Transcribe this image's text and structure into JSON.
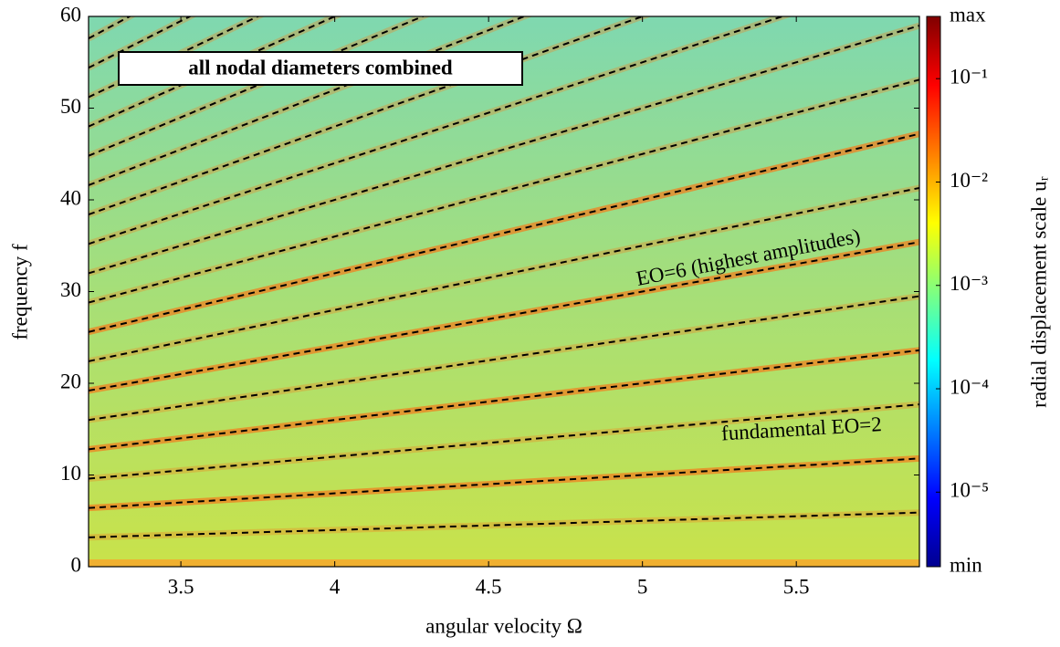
{
  "chart_data": {
    "type": "line",
    "x": [
      3.2,
      5.9
    ],
    "xlabel": "angular velocity Ω",
    "ylabel": "frequency f",
    "xlim": [
      3.2,
      5.9
    ],
    "xticks": [
      3.5,
      4,
      4.5,
      5,
      5.5
    ],
    "ylim": [
      0,
      60
    ],
    "yticks": [
      0,
      10,
      20,
      30,
      40,
      50,
      60
    ],
    "line_style": "dashed",
    "series": [
      {
        "color": "#000000",
        "values": [
          3.2,
          5.9
        ]
      },
      {
        "color": "#000000",
        "values": [
          6.4,
          11.8
        ]
      },
      {
        "color": "#000000",
        "values": [
          9.6,
          17.7
        ]
      },
      {
        "color": "#000000",
        "values": [
          12.8,
          23.6
        ]
      },
      {
        "color": "#000000",
        "values": [
          16,
          29.5
        ]
      },
      {
        "color": "#000000",
        "values": [
          19.2,
          35.4
        ]
      },
      {
        "color": "#000000",
        "values": [
          22.4,
          41.3
        ]
      },
      {
        "color": "#000000",
        "values": [
          25.6,
          47.2
        ]
      },
      {
        "color": "#000000",
        "values": [
          28.8,
          53.1
        ]
      },
      {
        "color": "#000000",
        "values": [
          32,
          59
        ]
      },
      {
        "color": "#000000",
        "values": [
          35.2,
          64.9
        ]
      },
      {
        "color": "#000000",
        "values": [
          38.4,
          70.8
        ]
      },
      {
        "color": "#000000",
        "values": [
          41.6,
          76.7
        ]
      },
      {
        "color": "#000000",
        "values": [
          44.8,
          82.6
        ]
      },
      {
        "color": "#000000",
        "values": [
          48,
          88.5
        ]
      },
      {
        "color": "#000000",
        "values": [
          51.2,
          94.4
        ]
      },
      {
        "color": "#000000",
        "values": [
          54.4,
          100.3
        ]
      },
      {
        "color": "#000000",
        "values": [
          57.6,
          106.2
        ]
      }
    ],
    "annotations": [
      "all nodal diameters combined",
      "EO=6 (highest amplitudes)",
      "fundamental EO=2"
    ],
    "colorbar": {
      "label": "radial displacement scale uᵣ",
      "log_scale": true,
      "clim": [
        1.9e-06,
        0.4
      ],
      "ticks": [
        {
          "value": 1.9e-06,
          "label": "min"
        },
        {
          "value": 1e-05,
          "label": "10⁻⁵"
        },
        {
          "value": 0.0001,
          "label": "10⁻⁴"
        },
        {
          "value": 0.001,
          "label": "10⁻³"
        },
        {
          "value": 0.01,
          "label": "10⁻²"
        },
        {
          "value": 0.1,
          "label": "10⁻¹"
        },
        {
          "value": 0.4,
          "label": "max"
        }
      ]
    }
  }
}
